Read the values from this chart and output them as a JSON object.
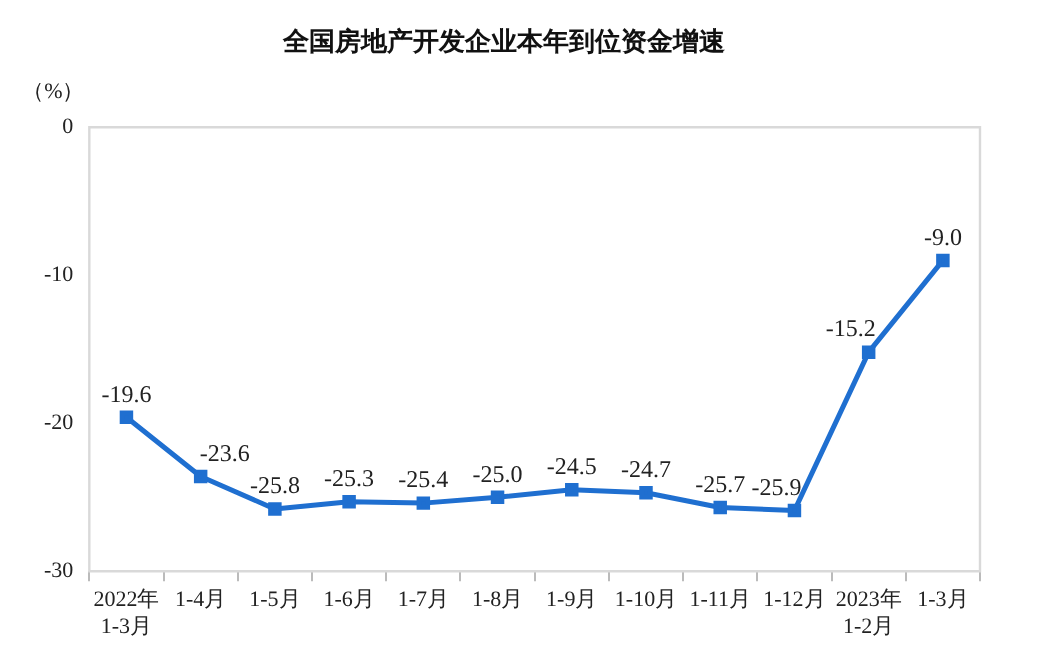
{
  "chart_data": {
    "type": "line",
    "title": "全国房地产开发企业本年到位资金增速",
    "ylabel": "（%）",
    "categories": [
      "2022年\n1-3月",
      "1-4月",
      "1-5月",
      "1-6月",
      "1-7月",
      "1-8月",
      "1-9月",
      "1-10月",
      "1-11月",
      "1-12月",
      "2023年\n1-2月",
      "1-3月"
    ],
    "series": [
      {
        "color": "#1f6fd0",
        "values": [
          -19.6,
          -23.6,
          -25.8,
          -25.3,
          -25.4,
          -25.0,
          -24.5,
          -24.7,
          -25.7,
          -25.9,
          -15.2,
          -9.0
        ],
        "value_labels": [
          "-19.6",
          "-23.6",
          "-25.8",
          "-25.3",
          "-25.4",
          "-25.0",
          "-24.5",
          "-24.7",
          "-25.7",
          "-25.9",
          "-15.2",
          "-9.0"
        ]
      }
    ],
    "ylim": [
      -30,
      0
    ],
    "yticks": [
      -30,
      -20,
      -10,
      0
    ],
    "grid": false,
    "legend": false,
    "marker": "square",
    "line_style": "solid"
  }
}
